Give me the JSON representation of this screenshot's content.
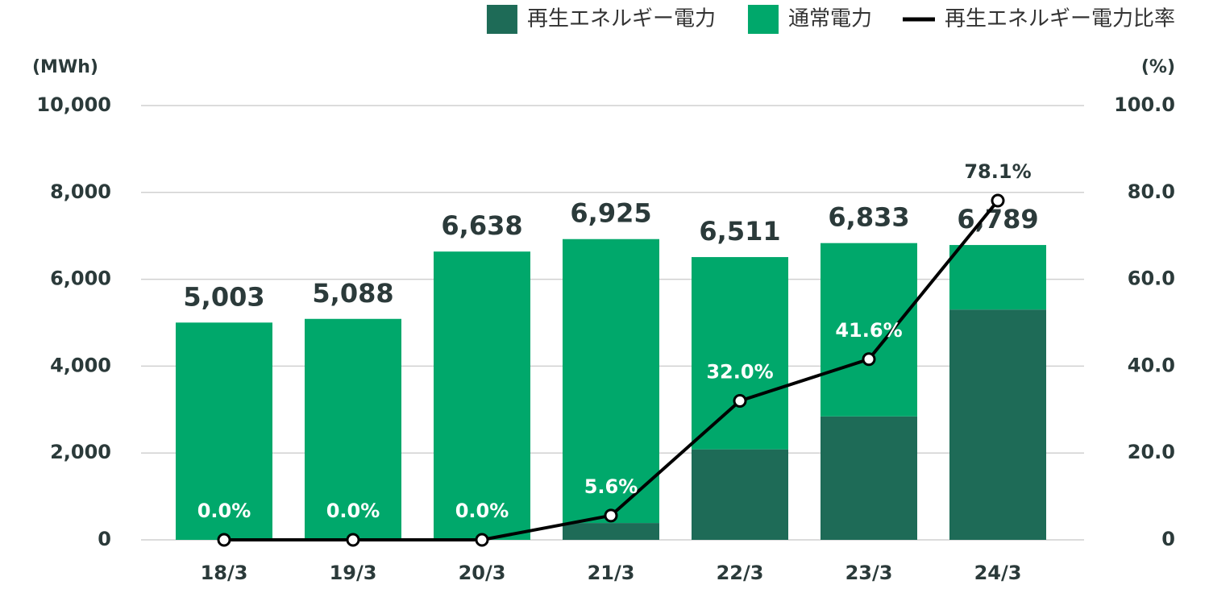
{
  "chart_data": {
    "type": "bar",
    "y_axis_label": "(MWh)",
    "y2_axis_label": "(%)",
    "categories": [
      "18/3",
      "19/3",
      "20/3",
      "21/3",
      "22/3",
      "23/3",
      "24/3"
    ],
    "series": [
      {
        "name": "再生エネルギー電力",
        "color": "#1e6b57",
        "values": [
          0,
          0,
          0,
          388,
          2084,
          2843,
          5302
        ]
      },
      {
        "name": "通常電力",
        "color": "#00a86b",
        "values": [
          5003,
          5088,
          6638,
          6537,
          4427,
          3990,
          1487
        ]
      },
      {
        "name": "再生エネルギー電力比率",
        "type": "line",
        "axis": "y2",
        "color": "#000000",
        "values": [
          0.0,
          0.0,
          0.0,
          5.6,
          32.0,
          41.6,
          78.1
        ],
        "value_labels": [
          "0.0%",
          "0.0%",
          "0.0%",
          "5.6%",
          "32.0%",
          "41.6%",
          "78.1%"
        ]
      }
    ],
    "totals": [
      5003,
      5088,
      6638,
      6925,
      6511,
      6833,
      6789
    ],
    "total_labels": [
      "5,003",
      "5,088",
      "6,638",
      "6,925",
      "6,511",
      "6,833",
      "6,789"
    ],
    "ylim": [
      0,
      10000
    ],
    "yticks": [
      0,
      {
        "value": 2000,
        "label": "2,000"
      },
      {
        "value": 4000,
        "label": "4,000"
      },
      {
        "value": 6000,
        "label": "6,000"
      },
      {
        "value": 8000,
        "label": "8,000"
      },
      {
        "value": 10000,
        "label": "10,000"
      }
    ],
    "y2lim": [
      0,
      100
    ],
    "y2ticks": [
      0,
      {
        "value": 20,
        "label": "20.0"
      },
      {
        "value": 40,
        "label": "40.0"
      },
      {
        "value": 60,
        "label": "60.0"
      },
      {
        "value": 80,
        "label": "80.0"
      },
      {
        "value": 100,
        "label": "100.0"
      }
    ],
    "grid": true,
    "legend": "top-right"
  }
}
